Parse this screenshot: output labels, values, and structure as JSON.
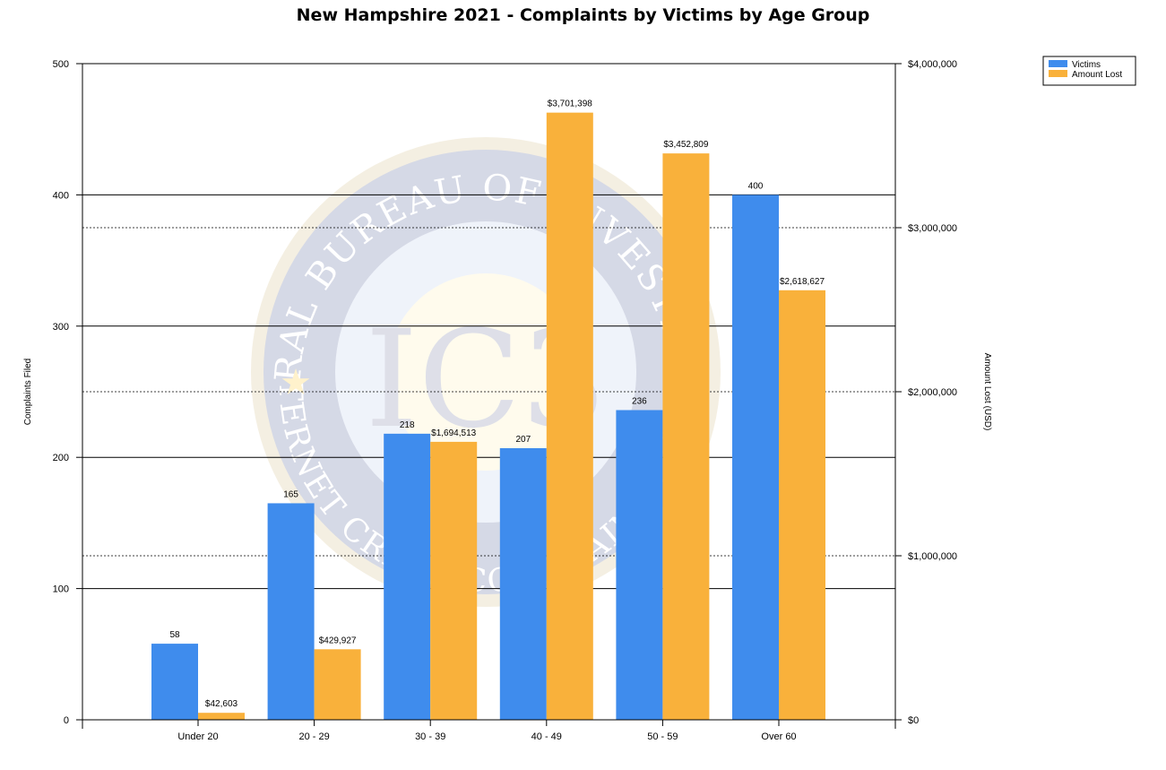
{
  "chart_data": {
    "type": "bar",
    "title": "New Hampshire 2021 - Complaints by Victims by Age Group",
    "categories": [
      "Under 20",
      "20 - 29",
      "30 - 39",
      "40 - 49",
      "50 - 59",
      "Over 60"
    ],
    "series": [
      {
        "name": "Victims",
        "axis": "left",
        "color": "#3f8ced",
        "values": [
          58,
          165,
          218,
          207,
          236,
          400
        ],
        "labels": [
          "58",
          "165",
          "218",
          "207",
          "236",
          "400"
        ]
      },
      {
        "name": "Amount Lost",
        "axis": "right",
        "color": "#f9b13b",
        "values": [
          42603,
          429927,
          1694513,
          3701398,
          3452809,
          2618627
        ],
        "labels": [
          "$42,603",
          "$429,927",
          "$1,694,513",
          "$3,701,398",
          "$3,452,809",
          "$2,618,627"
        ]
      }
    ],
    "ylabel": "Complaints Filed",
    "ylim": [
      0,
      500
    ],
    "yticks": [
      "0",
      "100",
      "200",
      "300",
      "400",
      "500"
    ],
    "y2label": "Amount Lost (USD)",
    "y2lim": [
      0,
      4000000
    ],
    "y2ticks": [
      "$0",
      "$1,000,000",
      "$2,000,000",
      "$3,000,000",
      "$4,000,000"
    ],
    "grid": true,
    "legend_position": "top-right",
    "watermark": {
      "description": "Federal Bureau of Investigation Internet Crime Complaint Center seal",
      "top_text": "FEDERAL BUREAU OF INVESTIGATION",
      "bottom_text": "INTERNET CRIME COMPLAINT CENTER",
      "center_text": "IC3"
    }
  }
}
